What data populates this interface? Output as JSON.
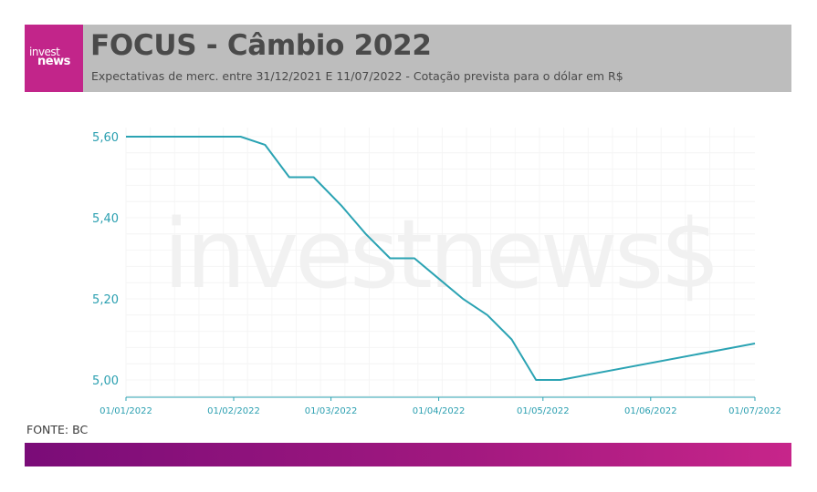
{
  "header": {
    "logo_top": "invest",
    "logo_bottom": "news",
    "title": "FOCUS - Câmbio 2022",
    "subtitle": "Expectativas de merc. entre 31/12/2021 E 11/07/2022 - Cotação prevista para o dólar em R$"
  },
  "watermark": "investnews$",
  "source": "FONTE: BC",
  "colors": {
    "line": "#2ba3b3",
    "axis_text": "#2a9fb0",
    "header_bg": "#bdbdbd",
    "logo_bg": "#c2258a",
    "footer_start": "#7a0c78",
    "footer_end": "#c7258a"
  },
  "chart_data": {
    "type": "line",
    "x_ticks": [
      "01/01/2022",
      "01/02/2022",
      "01/03/2022",
      "01/04/2022",
      "01/05/2022",
      "01/06/2022",
      "01/07/2022"
    ],
    "y_ticks": [
      "5,60",
      "5,40",
      "5,20",
      "5,00"
    ],
    "ylim": [
      4.96,
      5.63
    ],
    "xlim": [
      "2022-01-01",
      "2022-07-01"
    ],
    "grid": true,
    "points": [
      {
        "x": "2022-01-01",
        "y": 5.6
      },
      {
        "x": "2022-02-03",
        "y": 5.6
      },
      {
        "x": "2022-02-10",
        "y": 5.58
      },
      {
        "x": "2022-02-17",
        "y": 5.5
      },
      {
        "x": "2022-02-24",
        "y": 5.5
      },
      {
        "x": "2022-03-04",
        "y": 5.43
      },
      {
        "x": "2022-03-11",
        "y": 5.36
      },
      {
        "x": "2022-03-18",
        "y": 5.3
      },
      {
        "x": "2022-03-25",
        "y": 5.3
      },
      {
        "x": "2022-04-01",
        "y": 5.25
      },
      {
        "x": "2022-04-08",
        "y": 5.2
      },
      {
        "x": "2022-04-15",
        "y": 5.16
      },
      {
        "x": "2022-04-22",
        "y": 5.1
      },
      {
        "x": "2022-04-29",
        "y": 5.0
      },
      {
        "x": "2022-05-06",
        "y": 5.0
      },
      {
        "x": "2022-07-01",
        "y": 5.09
      }
    ]
  }
}
